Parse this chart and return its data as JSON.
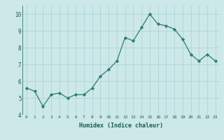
{
  "x": [
    0,
    1,
    2,
    3,
    4,
    5,
    6,
    7,
    8,
    9,
    10,
    11,
    12,
    13,
    14,
    15,
    16,
    17,
    18,
    19,
    20,
    21,
    22,
    23
  ],
  "y": [
    5.6,
    5.4,
    4.5,
    5.2,
    5.3,
    5.0,
    5.2,
    5.2,
    5.6,
    6.3,
    6.7,
    7.2,
    8.6,
    8.4,
    9.2,
    10.0,
    9.4,
    9.3,
    9.1,
    8.5,
    7.6,
    7.2,
    7.6,
    7.2
  ],
  "xlabel": "Humidex (Indice chaleur)",
  "xlim": [
    -0.5,
    23.5
  ],
  "ylim": [
    4.0,
    10.5
  ],
  "line_color": "#2e7d6e",
  "marker": "D",
  "marker_size": 2.2,
  "bg_color": "#cce8e8",
  "grid_color": "#b0d4d4",
  "label_color": "#1a5c50",
  "yticks": [
    4,
    5,
    6,
    7,
    8,
    9,
    10
  ],
  "xticks": [
    0,
    1,
    2,
    3,
    4,
    5,
    6,
    7,
    8,
    9,
    10,
    11,
    12,
    13,
    14,
    15,
    16,
    17,
    18,
    19,
    20,
    21,
    22,
    23
  ]
}
